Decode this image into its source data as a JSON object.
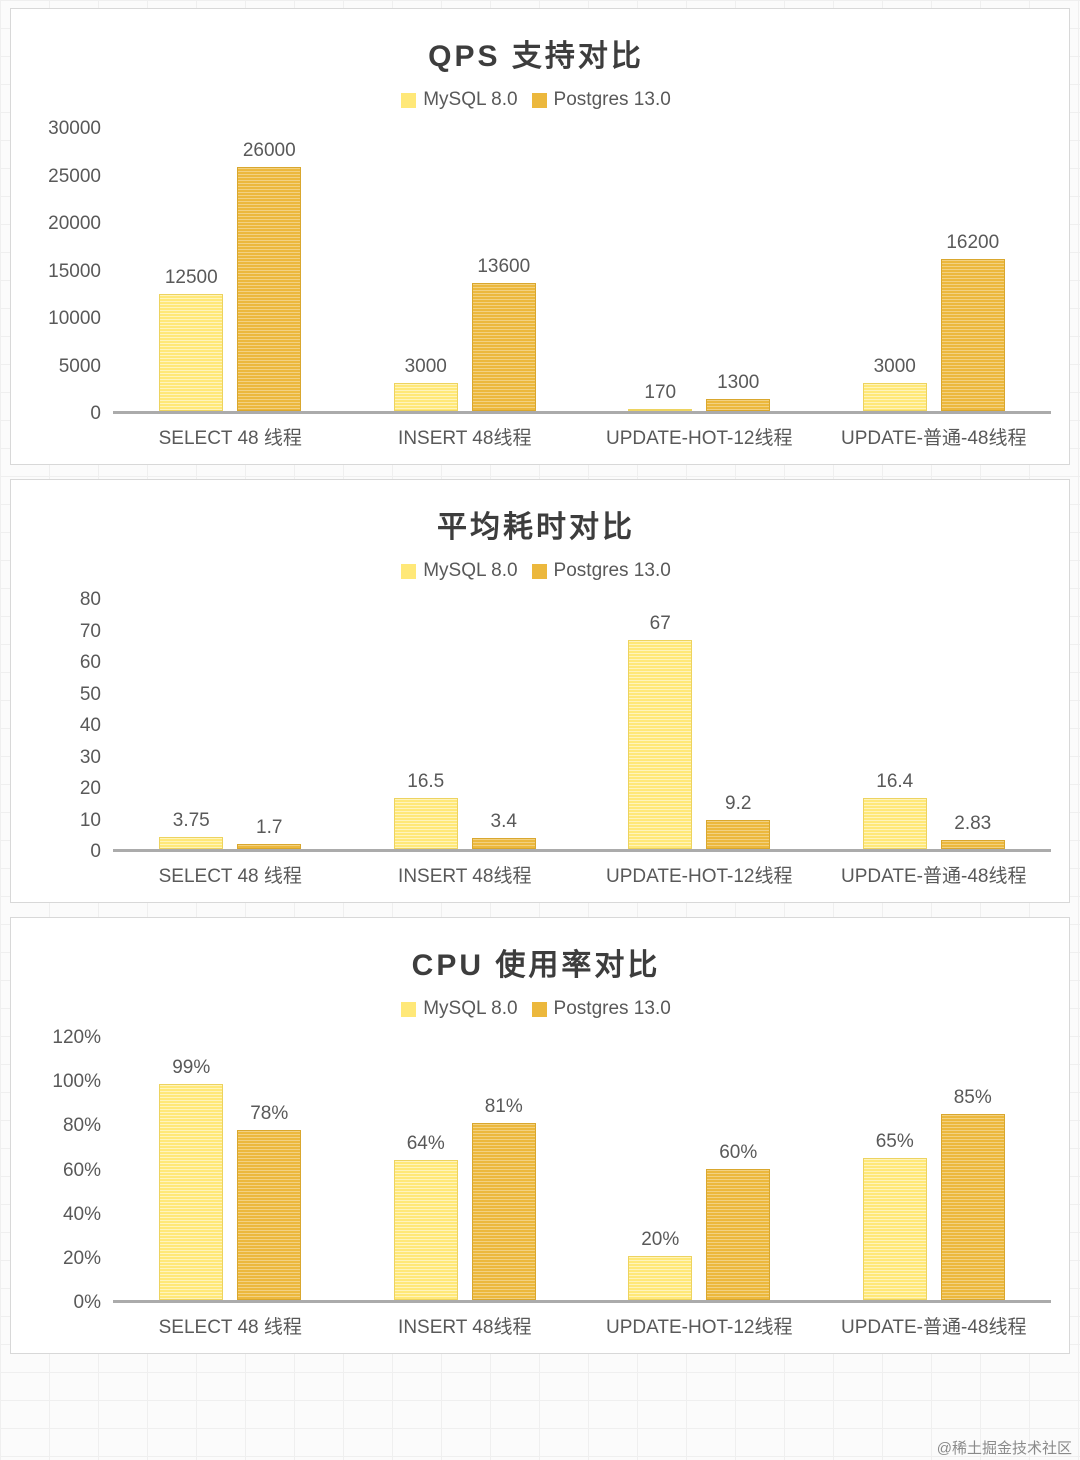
{
  "watermark": "@稀土掘金技术社区",
  "legend": {
    "mysql": "MySQL 8.0",
    "postgres": "Postgres 13.0"
  },
  "colors": {
    "mysql": "#FFE878",
    "postgres": "#ECB83D"
  },
  "chart_data": [
    {
      "type": "bar",
      "title": "QPS 支持对比",
      "categories": [
        "SELECT 48 线程",
        "INSERT 48线程",
        "UPDATE-HOT-12线程",
        "UPDATE-普通-48线程"
      ],
      "series": [
        {
          "name": "MySQL 8.0",
          "values": [
            12500,
            3000,
            170,
            3000
          ],
          "labels": [
            "12500",
            "3000",
            "170",
            "3000"
          ]
        },
        {
          "name": "Postgres 13.0",
          "values": [
            26000,
            13600,
            1300,
            16200
          ],
          "labels": [
            "26000",
            "13600",
            "1300",
            "16200"
          ]
        }
      ],
      "ylim": [
        0,
        30000
      ],
      "ytick_values": [
        0,
        5000,
        10000,
        15000,
        20000,
        25000,
        30000
      ],
      "ytick_labels": [
        "0",
        "5000",
        "10000",
        "15000",
        "20000",
        "25000",
        "30000"
      ],
      "legend_position": "top",
      "grid": false
    },
    {
      "type": "bar",
      "title": "平均耗时对比",
      "categories": [
        "SELECT 48 线程",
        "INSERT 48线程",
        "UPDATE-HOT-12线程",
        "UPDATE-普通-48线程"
      ],
      "series": [
        {
          "name": "MySQL 8.0",
          "values": [
            3.75,
            16.5,
            67,
            16.4
          ],
          "labels": [
            "3.75",
            "16.5",
            "67",
            "16.4"
          ]
        },
        {
          "name": "Postgres 13.0",
          "values": [
            1.7,
            3.4,
            9.2,
            2.83
          ],
          "labels": [
            "1.7",
            "3.4",
            "9.2",
            "2.83"
          ]
        }
      ],
      "ylim": [
        0,
        80
      ],
      "ytick_values": [
        0,
        10,
        20,
        30,
        40,
        50,
        60,
        70,
        80
      ],
      "ytick_labels": [
        "0",
        "10",
        "20",
        "30",
        "40",
        "50",
        "60",
        "70",
        "80"
      ],
      "legend_position": "top",
      "grid": false
    },
    {
      "type": "bar",
      "title": "CPU 使用率对比",
      "categories": [
        "SELECT 48 线程",
        "INSERT 48线程",
        "UPDATE-HOT-12线程",
        "UPDATE-普通-48线程"
      ],
      "series": [
        {
          "name": "MySQL 8.0",
          "values": [
            99,
            64,
            20,
            65
          ],
          "labels": [
            "99%",
            "64%",
            "20%",
            "65%"
          ]
        },
        {
          "name": "Postgres 13.0",
          "values": [
            78,
            81,
            60,
            85
          ],
          "labels": [
            "78%",
            "81%",
            "60%",
            "85%"
          ]
        }
      ],
      "ylim": [
        0,
        120
      ],
      "ytick_values": [
        0,
        20,
        40,
        60,
        80,
        100,
        120
      ],
      "ytick_labels": [
        "0%",
        "20%",
        "40%",
        "60%",
        "80%",
        "100%",
        "120%"
      ],
      "legend_position": "top",
      "grid": false
    }
  ]
}
